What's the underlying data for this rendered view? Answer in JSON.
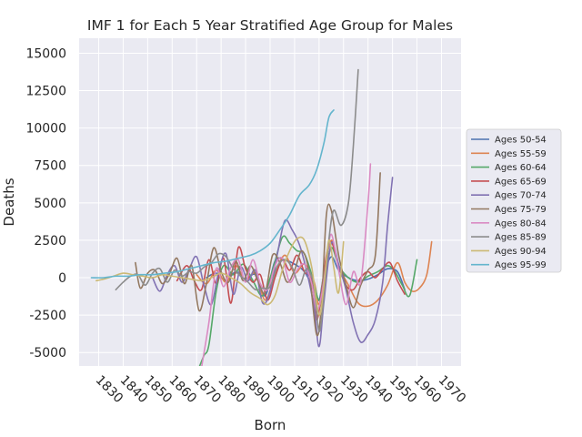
{
  "chart_data": {
    "type": "line",
    "title": "IMF 1 for Each 5 Year Stratified Age Group for Males",
    "xlabel": "Born",
    "ylabel": "Deaths",
    "xlim": [
      1822,
      1978
    ],
    "ylim": [
      -5900,
      16000
    ],
    "x_ticks": [
      1830,
      1840,
      1850,
      1860,
      1870,
      1880,
      1890,
      1900,
      1910,
      1920,
      1930,
      1940,
      1950,
      1960,
      1970
    ],
    "y_ticks": [
      -5000,
      -2500,
      0,
      2500,
      5000,
      7500,
      10000,
      12500,
      15000
    ],
    "grid": true,
    "legend_position": "right",
    "series": [
      {
        "name": "Ages 50-54",
        "color": "#4c72b0",
        "x": [
          1874,
          1878,
          1882,
          1886,
          1890,
          1894,
          1898,
          1902,
          1906,
          1910,
          1914,
          1918,
          1920,
          1922,
          1925,
          1928,
          1932,
          1936,
          1940,
          1944,
          1948,
          1952,
          1955
        ],
        "y": [
          0,
          300,
          -200,
          400,
          -100,
          200,
          -1200,
          1100,
          1200,
          900,
          400,
          -800,
          -1500,
          200,
          1400,
          500,
          0,
          -200,
          -100,
          200,
          600,
          400,
          -800
        ]
      },
      {
        "name": "Ages 55-59",
        "color": "#dd8452",
        "x": [
          1870,
          1874,
          1878,
          1882,
          1886,
          1890,
          1894,
          1898,
          1902,
          1906,
          1910,
          1914,
          1918,
          1920,
          1922,
          1925,
          1928,
          1932,
          1936,
          1940,
          1944,
          1948,
          1952,
          1955,
          1958,
          1961,
          1964,
          1966
        ],
        "y": [
          200,
          -400,
          500,
          -300,
          800,
          -200,
          300,
          -1500,
          200,
          1500,
          300,
          900,
          -300,
          -1800,
          300,
          2500,
          800,
          -500,
          -1700,
          -1900,
          -1500,
          -500,
          1000,
          -300,
          -900,
          -700,
          200,
          2400
        ]
      },
      {
        "name": "Ages 60-64",
        "color": "#55a868",
        "x": [
          1871,
          1873,
          1875,
          1878,
          1881,
          1885,
          1889,
          1893,
          1897,
          1901,
          1905,
          1908,
          1911,
          1914,
          1917,
          1920,
          1922,
          1925,
          1928,
          1932,
          1936,
          1940,
          1944,
          1948,
          1951,
          1954,
          1957,
          1960
        ],
        "y": [
          -6000,
          -5200,
          -4500,
          -900,
          800,
          200,
          900,
          -200,
          -1200,
          500,
          2700,
          2300,
          1800,
          1600,
          200,
          -1500,
          0,
          2000,
          800,
          0,
          -300,
          100,
          400,
          800,
          400,
          -500,
          -1200,
          1200
        ]
      },
      {
        "name": "Ages 65-69",
        "color": "#c44e52",
        "x": [
          1862,
          1866,
          1869,
          1872,
          1875,
          1878,
          1881,
          1884,
          1887,
          1890,
          1893,
          1896,
          1899,
          1902,
          1905,
          1908,
          1911,
          1914,
          1917,
          1919,
          1921,
          1923,
          1925,
          1928,
          1931,
          1934,
          1937,
          1940,
          1943,
          1946,
          1949,
          1952,
          1955
        ],
        "y": [
          -200,
          800,
          -200,
          -800,
          1200,
          -400,
          1300,
          -1700,
          2000,
          600,
          -300,
          200,
          -1500,
          0,
          1200,
          500,
          1500,
          400,
          -200,
          -2800,
          -1000,
          1500,
          2400,
          800,
          -500,
          -800,
          0,
          400,
          0,
          600,
          1000,
          -200,
          -1100
        ]
      },
      {
        "name": "Ages 70-74",
        "color": "#8172b3",
        "x": [
          1852,
          1855,
          1858,
          1861,
          1864,
          1867,
          1870,
          1873,
          1876,
          1879,
          1882,
          1885,
          1888,
          1891,
          1894,
          1897,
          1900,
          1903,
          1906,
          1909,
          1912,
          1915,
          1918,
          1920,
          1922,
          1925,
          1928,
          1931,
          1934,
          1937,
          1940,
          1943,
          1946,
          1948,
          1950
        ],
        "y": [
          0,
          -900,
          200,
          800,
          -300,
          600,
          1400,
          -500,
          -1800,
          400,
          1600,
          -1100,
          700,
          -200,
          500,
          -1700,
          -900,
          1600,
          3800,
          3200,
          2200,
          400,
          -2000,
          -4600,
          -1600,
          2300,
          900,
          -800,
          -3000,
          -4300,
          -3800,
          -2800,
          -300,
          3500,
          6700
        ]
      },
      {
        "name": "Ages 75-79",
        "color": "#937860",
        "x": [
          1845,
          1847,
          1850,
          1853,
          1856,
          1859,
          1862,
          1865,
          1868,
          1871,
          1874,
          1877,
          1880,
          1883,
          1886,
          1889,
          1892,
          1895,
          1898,
          1901,
          1904,
          1907,
          1910,
          1913,
          1916,
          1919,
          1921,
          1923,
          1925,
          1928,
          1931,
          1934,
          1937,
          1940,
          1943,
          1945
        ],
        "y": [
          1000,
          -700,
          300,
          500,
          -400,
          300,
          1300,
          -400,
          800,
          -2200,
          -400,
          2000,
          400,
          -300,
          1100,
          -200,
          800,
          -200,
          -1000,
          1500,
          1000,
          -300,
          500,
          1800,
          300,
          -3800,
          -1800,
          4200,
          4500,
          1500,
          -500,
          -2000,
          -500,
          500,
          1500,
          7000
        ]
      },
      {
        "name": "Ages 80-84",
        "color": "#da8bc3",
        "x": [
          1872,
          1875,
          1878,
          1881,
          1884,
          1887,
          1890,
          1893,
          1896,
          1899,
          1902,
          1905,
          1908,
          1911,
          1914,
          1917,
          1919,
          1921,
          1923,
          1925,
          1928,
          1931,
          1934,
          1937,
          1940,
          1941
        ],
        "y": [
          -6000,
          -3000,
          600,
          -600,
          700,
          1200,
          -300,
          1200,
          -400,
          -800,
          800,
          1300,
          -300,
          500,
          900,
          -400,
          -2200,
          -1200,
          1000,
          2900,
          500,
          -1800,
          400,
          -300,
          5000,
          7600
        ]
      },
      {
        "name": "Ages 85-89",
        "color": "#8c8c8c",
        "x": [
          1837,
          1840,
          1843,
          1846,
          1849,
          1852,
          1855,
          1858,
          1861,
          1864,
          1867,
          1870,
          1873,
          1876,
          1879,
          1882,
          1885,
          1888,
          1891,
          1894,
          1897,
          1900,
          1903,
          1906,
          1909,
          1912,
          1915,
          1918,
          1920,
          1922,
          1924,
          1926,
          1929,
          1932,
          1934,
          1936
        ],
        "y": [
          -800,
          -300,
          100,
          200,
          -500,
          300,
          600,
          -300,
          500,
          100,
          400,
          300,
          700,
          1000,
          1600,
          1400,
          600,
          100,
          -300,
          -800,
          -700,
          -600,
          800,
          1200,
          700,
          -500,
          600,
          -600,
          -3600,
          -1200,
          2500,
          4500,
          3500,
          5000,
          8800,
          13900
        ]
      },
      {
        "name": "Ages 90-94",
        "color": "#ccb974",
        "x": [
          1829,
          1832,
          1836,
          1840,
          1844,
          1848,
          1852,
          1856,
          1860,
          1864,
          1868,
          1872,
          1876,
          1880,
          1884,
          1888,
          1892,
          1896,
          1899,
          1902,
          1905,
          1908,
          1911,
          1914,
          1917,
          1920,
          1922,
          1924,
          1926,
          1928,
          1930
        ],
        "y": [
          -200,
          -100,
          100,
          300,
          200,
          100,
          0,
          200,
          100,
          0,
          -100,
          -200,
          0,
          300,
          0,
          -400,
          -1000,
          -1400,
          -1800,
          -1200,
          500,
          1800,
          2600,
          2500,
          700,
          -2500,
          -500,
          2500,
          700,
          -1000,
          2400
        ]
      },
      {
        "name": "Ages 95-99",
        "color": "#64b5cd",
        "x": [
          1827,
          1832,
          1837,
          1842,
          1847,
          1852,
          1857,
          1862,
          1867,
          1872,
          1877,
          1882,
          1887,
          1892,
          1896,
          1900,
          1904,
          1908,
          1912,
          1916,
          1919,
          1922,
          1924,
          1926
        ],
        "y": [
          0,
          0,
          100,
          100,
          200,
          200,
          300,
          400,
          600,
          800,
          1000,
          1100,
          1300,
          1500,
          1800,
          2300,
          3200,
          4200,
          5500,
          6200,
          7200,
          9000,
          10700,
          11200
        ]
      }
    ]
  }
}
